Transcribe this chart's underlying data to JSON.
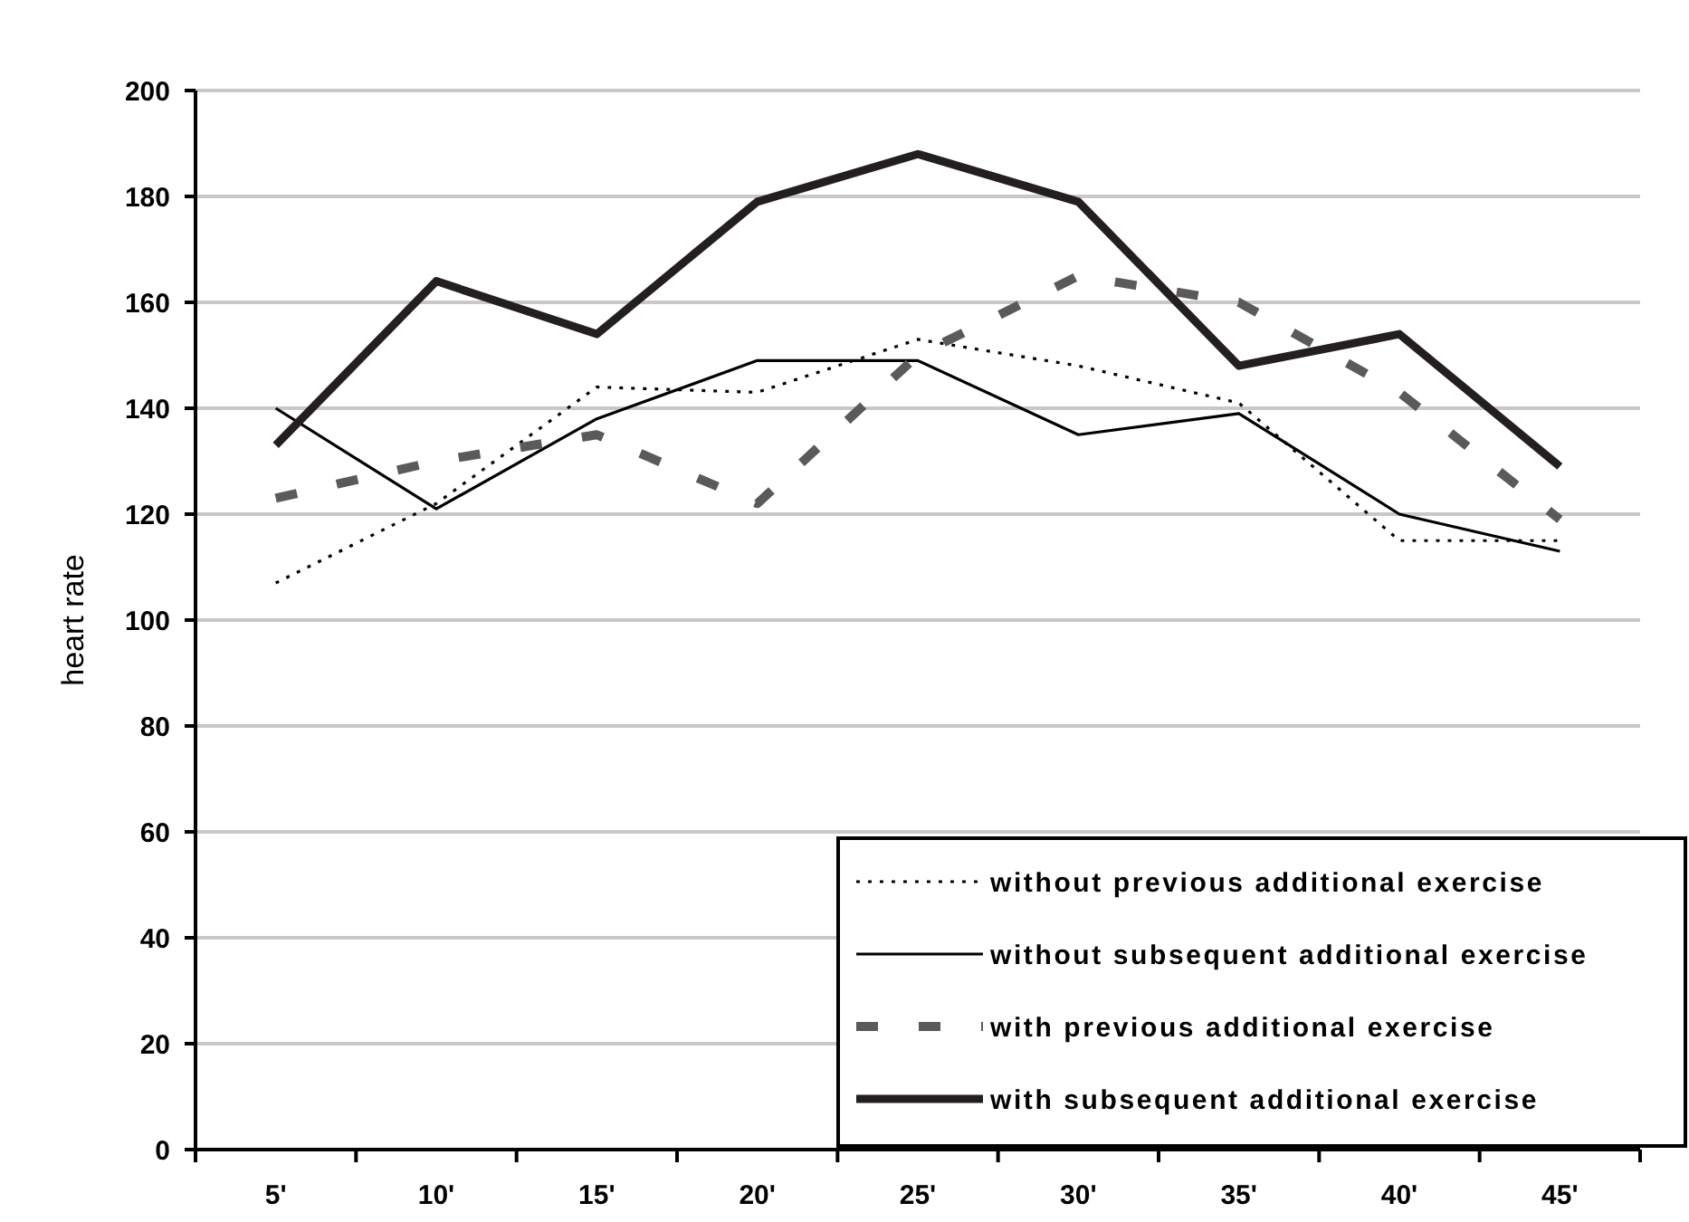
{
  "chart_data": {
    "type": "line",
    "ylabel": "heart rate",
    "categories": [
      "5'",
      "10'",
      "15'",
      "20'",
      "25'",
      "30'",
      "35'",
      "40'",
      "45'"
    ],
    "ylim": [
      0,
      200
    ],
    "yticks": [
      0,
      20,
      40,
      60,
      80,
      100,
      120,
      140,
      160,
      180,
      200
    ],
    "grid": "y",
    "legend": "bottom right",
    "marker": "none",
    "series": [
      {
        "name": "without previous additional exercise",
        "color": "#000000",
        "line_style": "dotted",
        "values": [
          107,
          122,
          144,
          143,
          153,
          148,
          141,
          115,
          115
        ]
      },
      {
        "name": "without subsequent additional exercise",
        "color": "#000000",
        "line_style": "solid",
        "values": [
          140,
          121,
          138,
          149,
          149,
          135,
          139,
          120,
          113
        ]
      },
      {
        "name": "with previous additional exercise",
        "color": "#5a5a5a",
        "line_style": "dashed",
        "values": [
          123,
          130,
          135,
          122,
          150,
          165,
          160,
          143,
          119
        ]
      },
      {
        "name": "with subsequent additional exercise",
        "color": "#231f20",
        "line_style": "solid",
        "values": [
          133,
          164,
          154,
          179,
          188,
          179,
          148,
          154,
          129
        ]
      }
    ]
  }
}
